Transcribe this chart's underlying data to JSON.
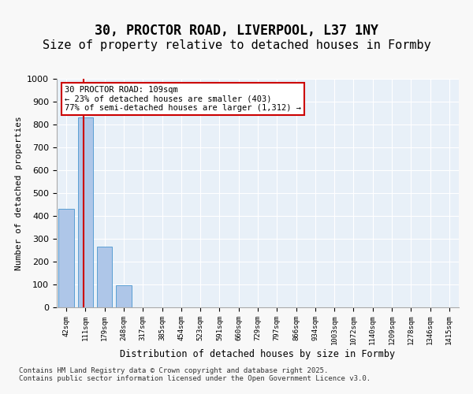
{
  "title1": "30, PROCTOR ROAD, LIVERPOOL, L37 1NY",
  "title2": "Size of property relative to detached houses in Formby",
  "xlabel": "Distribution of detached houses by size in Formby",
  "ylabel": "Number of detached properties",
  "categories": [
    "42sqm",
    "111sqm",
    "179sqm",
    "248sqm",
    "317sqm",
    "385sqm",
    "454sqm",
    "523sqm",
    "591sqm",
    "660sqm",
    "729sqm",
    "797sqm",
    "866sqm",
    "934sqm",
    "1003sqm",
    "1072sqm",
    "1140sqm",
    "1209sqm",
    "1278sqm",
    "1346sqm",
    "1415sqm"
  ],
  "values": [
    430,
    830,
    265,
    95,
    0,
    0,
    0,
    0,
    0,
    0,
    0,
    0,
    0,
    0,
    0,
    0,
    0,
    0,
    0,
    0,
    0
  ],
  "bar_color": "#aec6e8",
  "bar_edge_color": "#5a9fd4",
  "annotation_text": "30 PROCTOR ROAD: 109sqm\n← 23% of detached houses are smaller (403)\n77% of semi-detached houses are larger (1,312) →",
  "annotation_box_color": "#ffffff",
  "annotation_box_edge": "#cc0000",
  "vline_color": "#cc0000",
  "vline_x": 0.82,
  "ylim": [
    0,
    1000
  ],
  "yticks": [
    0,
    100,
    200,
    300,
    400,
    500,
    600,
    700,
    800,
    900,
    1000
  ],
  "background_color": "#e8f0f8",
  "footer_text": "Contains HM Land Registry data © Crown copyright and database right 2025.\nContains public sector information licensed under the Open Government Licence v3.0.",
  "title_fontsize": 12,
  "subtitle_fontsize": 11
}
